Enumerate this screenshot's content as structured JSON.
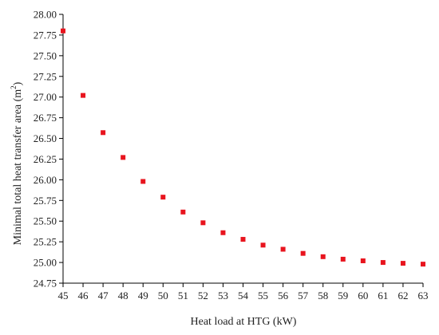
{
  "chart_data": {
    "type": "scatter",
    "xlabel": "Heat load at HTG (kW)",
    "ylabel": "Minimal total heat transfer area (m",
    "ylabel_sup": "2",
    "ylabel_close": ")",
    "xlim": [
      45,
      63
    ],
    "ylim": [
      24.75,
      28.0
    ],
    "xticks": [
      "45",
      "46",
      "47",
      "48",
      "49",
      "50",
      "51",
      "52",
      "53",
      "54",
      "55",
      "56",
      "57",
      "58",
      "59",
      "60",
      "61",
      "62",
      "63"
    ],
    "yticks": [
      "24.75",
      "25.00",
      "25.25",
      "25.50",
      "25.75",
      "26.00",
      "26.25",
      "26.50",
      "26.75",
      "27.00",
      "27.25",
      "27.50",
      "27.75",
      "28.00"
    ],
    "marker_color": "#e8141e",
    "grid": false,
    "series": [
      {
        "x": [
          45,
          46,
          47,
          48,
          49,
          50,
          51,
          52,
          53,
          54,
          55,
          56,
          57,
          58,
          59,
          60,
          61,
          62,
          63
        ],
        "y": [
          27.8,
          27.02,
          26.57,
          26.27,
          25.98,
          25.79,
          25.61,
          25.48,
          25.36,
          25.28,
          25.21,
          25.16,
          25.11,
          25.07,
          25.04,
          25.02,
          25.0,
          24.99,
          24.98
        ]
      }
    ]
  }
}
